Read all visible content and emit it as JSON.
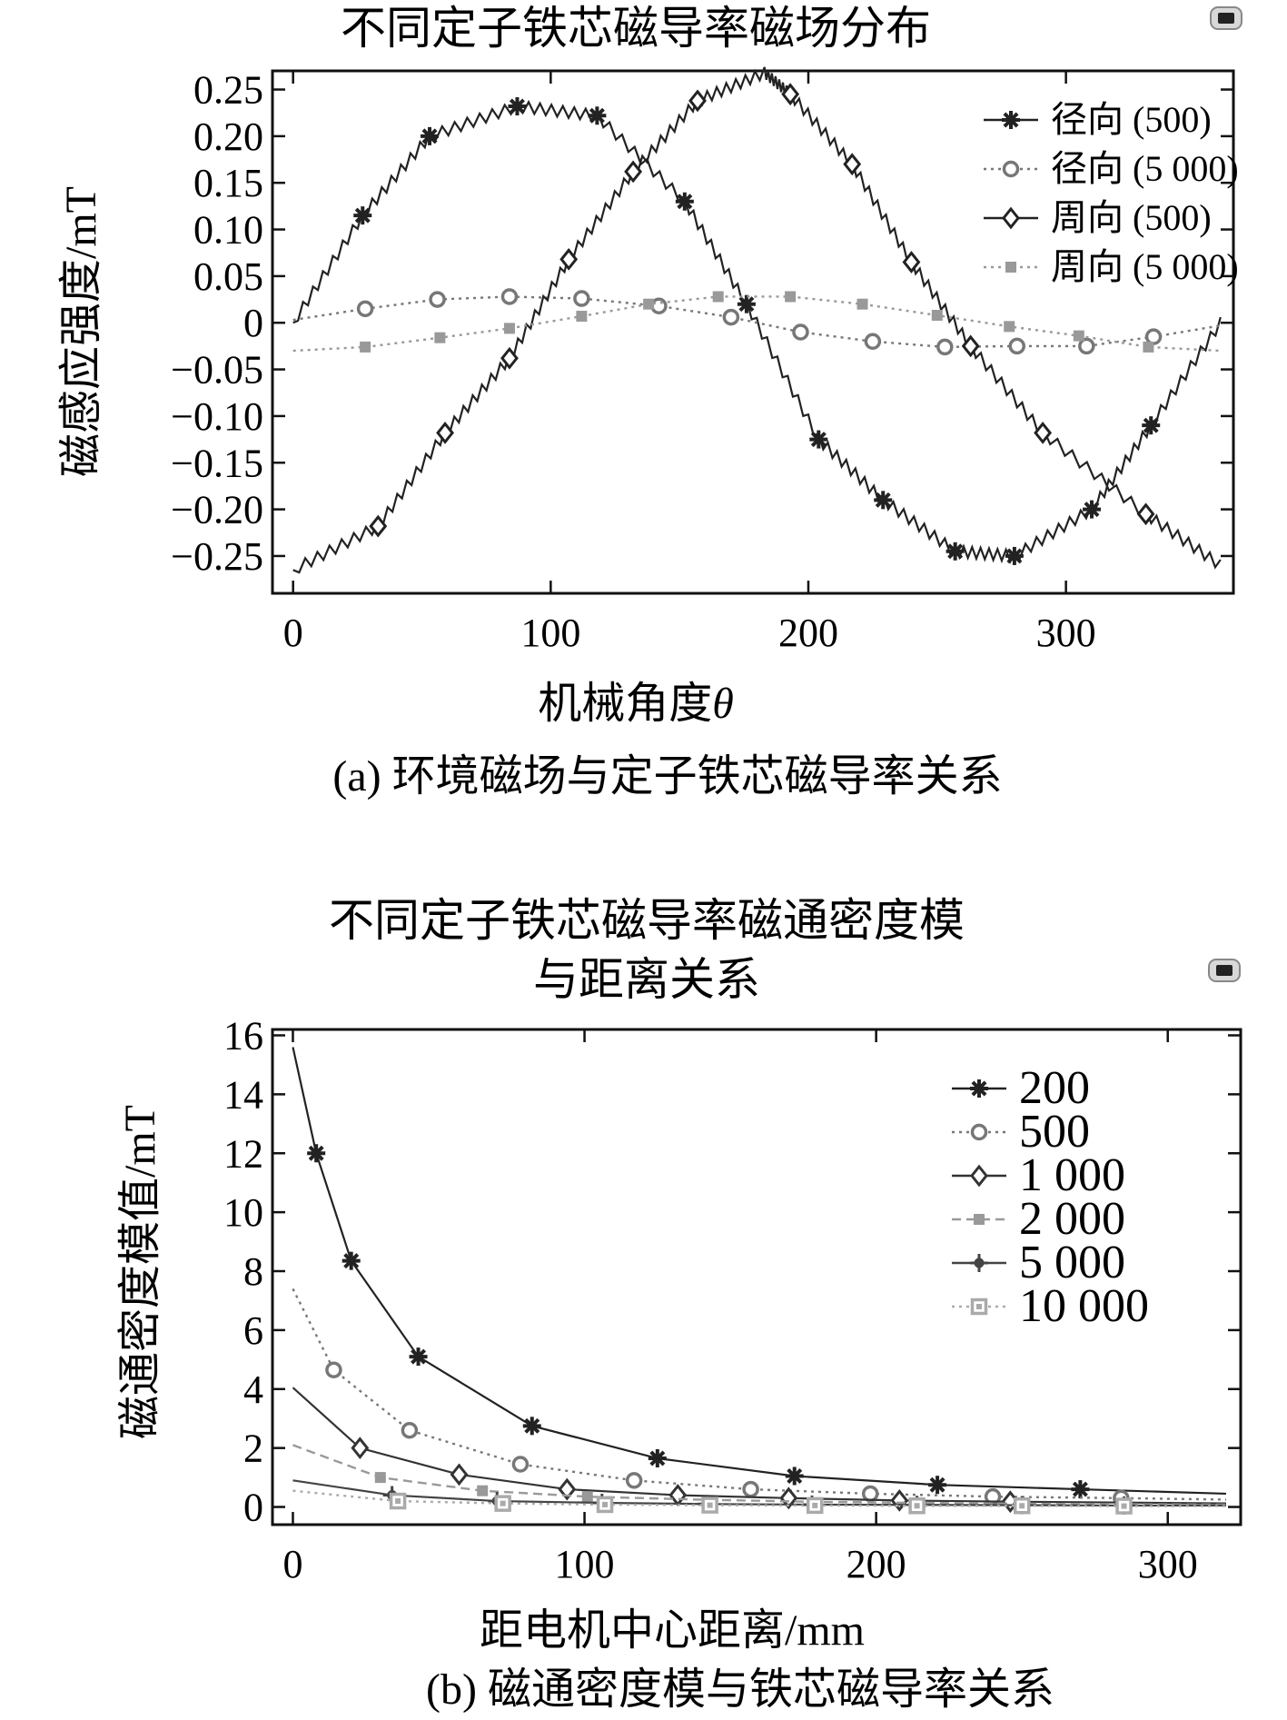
{
  "chart_data": [
    {
      "type": "line",
      "title": "不同定子铁芯磁导率磁场分布",
      "xlabel": "机械角度",
      "xlabel_symbol": "θ",
      "ylabel": "磁感应强度/mT",
      "caption": "(a) 环境磁场与定子铁芯磁导率关系",
      "xlim": [
        -8,
        365
      ],
      "ylim": [
        -0.29,
        0.27
      ],
      "xticks": [
        0,
        100,
        200,
        300
      ],
      "xtick_labels": [
        "0",
        "100",
        "200",
        "300"
      ],
      "yticks": [
        0.25,
        0.2,
        0.15,
        0.1,
        0.05,
        0,
        -0.05,
        -0.1,
        -0.15,
        -0.2,
        -0.25
      ],
      "ytick_labels": [
        "0.25",
        "0.20",
        "0.15",
        "0.10",
        "0.05",
        "0",
        "−0.05",
        "−0.10",
        "−0.15",
        "−0.20",
        "−0.25"
      ],
      "legend_position": "top-right",
      "series": [
        {
          "name": "径向 (500)",
          "marker": "asterisk",
          "line": "solid",
          "color": "#222222",
          "x": [
            0,
            27,
            53,
            87,
            118,
            152,
            176,
            204,
            229,
            257,
            280,
            310,
            333,
            360
          ],
          "y": [
            0.0,
            0.115,
            0.2,
            0.232,
            0.222,
            0.13,
            0.02,
            -0.125,
            -0.19,
            -0.245,
            -0.25,
            -0.2,
            -0.11,
            0.0
          ],
          "marker_x": [
            27,
            53,
            87,
            118,
            152,
            176,
            204,
            229,
            257,
            280,
            310,
            333
          ],
          "marker_y": [
            0.115,
            0.2,
            0.232,
            0.222,
            0.13,
            0.02,
            -0.125,
            -0.19,
            -0.245,
            -0.25,
            -0.2,
            -0.11
          ]
        },
        {
          "name": "径向 (5 000)",
          "marker": "circle",
          "line": "dotted",
          "color": "#777777",
          "x": [
            0,
            28,
            56,
            84,
            112,
            142,
            170,
            197,
            225,
            253,
            281,
            308,
            334,
            360
          ],
          "y": [
            0.003,
            0.015,
            0.025,
            0.028,
            0.026,
            0.018,
            0.006,
            -0.01,
            -0.02,
            -0.026,
            -0.025,
            -0.025,
            -0.015,
            -0.003
          ],
          "marker_x": [
            28,
            56,
            84,
            112,
            142,
            170,
            197,
            225,
            253,
            281,
            308,
            334
          ],
          "marker_y": [
            0.015,
            0.025,
            0.028,
            0.026,
            0.018,
            0.006,
            -0.01,
            -0.02,
            -0.026,
            -0.025,
            -0.025,
            -0.015
          ]
        },
        {
          "name": "周向 (500)",
          "marker": "diamond",
          "line": "solid",
          "color": "#222222",
          "x": [
            0,
            33,
            59,
            84,
            107,
            132,
            157,
            183,
            193,
            217,
            240,
            263,
            291,
            331,
            360
          ],
          "y": [
            -0.265,
            -0.218,
            -0.118,
            -0.038,
            0.068,
            0.162,
            0.238,
            0.268,
            0.245,
            0.17,
            0.065,
            -0.025,
            -0.118,
            -0.205,
            -0.26
          ],
          "marker_x": [
            33,
            59,
            84,
            107,
            132,
            157,
            193,
            217,
            240,
            263,
            291,
            331
          ],
          "marker_y": [
            -0.218,
            -0.118,
            -0.038,
            0.068,
            0.162,
            0.238,
            0.245,
            0.17,
            0.065,
            -0.025,
            -0.118,
            -0.205
          ]
        },
        {
          "name": "周向 (5 000)",
          "marker": "square",
          "line": "dotted",
          "color": "#999999",
          "x": [
            0,
            28,
            57,
            84,
            112,
            138,
            165,
            193,
            221,
            250,
            278,
            305,
            332,
            360
          ],
          "y": [
            -0.03,
            -0.026,
            -0.016,
            -0.006,
            0.007,
            0.02,
            0.028,
            0.028,
            0.02,
            0.008,
            -0.004,
            -0.014,
            -0.026,
            -0.03
          ],
          "marker_x": [
            28,
            57,
            84,
            112,
            138,
            165,
            193,
            221,
            250,
            278,
            305,
            332
          ],
          "marker_y": [
            -0.026,
            -0.016,
            -0.006,
            0.007,
            0.02,
            0.028,
            0.028,
            0.02,
            0.008,
            -0.004,
            -0.014,
            -0.026
          ]
        }
      ]
    },
    {
      "type": "line",
      "title": "不同定子铁芯磁导率磁通密度模",
      "title_line2": "与距离关系",
      "xlabel": "距电机中心距离/mm",
      "ylabel": "磁通密度模值/mT",
      "caption": "(b) 磁通密度模与铁芯磁导率关系",
      "xlim": [
        -7,
        325
      ],
      "ylim": [
        -0.6,
        16.2
      ],
      "xticks": [
        0,
        100,
        200,
        300
      ],
      "xtick_labels": [
        "0",
        "100",
        "200",
        "300"
      ],
      "yticks": [
        16,
        14,
        12,
        10,
        8,
        6,
        4,
        2,
        0
      ],
      "ytick_labels": [
        "16",
        "14",
        "12",
        "10",
        "8",
        "6",
        "4",
        "2",
        "0"
      ],
      "legend_position": "top-right",
      "series": [
        {
          "name": "200",
          "marker": "asterisk",
          "line": "solid",
          "color": "#222222",
          "x": [
            0,
            8,
            20,
            43,
            82,
            125,
            172,
            221,
            270,
            320
          ],
          "y": [
            15.6,
            12.0,
            8.35,
            5.1,
            2.75,
            1.65,
            1.05,
            0.75,
            0.6,
            0.45
          ],
          "marker_x": [
            8,
            20,
            43,
            82,
            125,
            172,
            221,
            270
          ],
          "marker_y": [
            12.0,
            8.35,
            5.1,
            2.75,
            1.65,
            1.05,
            0.75,
            0.6
          ]
        },
        {
          "name": "500",
          "marker": "circle",
          "line": "dotted",
          "color": "#777777",
          "x": [
            0,
            14,
            40,
            78,
            117,
            157,
            198,
            240,
            284,
            320
          ],
          "y": [
            7.4,
            4.65,
            2.6,
            1.45,
            0.9,
            0.6,
            0.45,
            0.35,
            0.3,
            0.25
          ],
          "marker_x": [
            14,
            40,
            78,
            117,
            157,
            198,
            240,
            284
          ],
          "marker_y": [
            4.65,
            2.6,
            1.45,
            0.9,
            0.6,
            0.45,
            0.35,
            0.3
          ]
        },
        {
          "name": "1 000",
          "marker": "diamond",
          "line": "solid",
          "color": "#333333",
          "x": [
            0,
            23,
            57,
            94,
            132,
            170,
            208,
            246,
            285,
            320
          ],
          "y": [
            4.05,
            2.0,
            1.1,
            0.6,
            0.4,
            0.3,
            0.22,
            0.18,
            0.15,
            0.12
          ],
          "marker_x": [
            23,
            57,
            94,
            132,
            170,
            208,
            246
          ],
          "marker_y": [
            2.0,
            1.1,
            0.6,
            0.4,
            0.3,
            0.22,
            0.18
          ]
        },
        {
          "name": "2 000",
          "marker": "square",
          "line": "dashed",
          "color": "#999999",
          "x": [
            0,
            30,
            65,
            101,
            139,
            176,
            213,
            250,
            288,
            320
          ],
          "y": [
            2.1,
            1.0,
            0.55,
            0.35,
            0.25,
            0.18,
            0.14,
            0.11,
            0.09,
            0.08
          ],
          "marker_x": [
            30,
            65,
            101
          ],
          "marker_y": [
            1.0,
            0.55,
            0.35
          ]
        },
        {
          "name": "5 000",
          "marker": "plus-dot",
          "line": "solid",
          "color": "#444444",
          "x": [
            0,
            34,
            70,
            106,
            142,
            178,
            214,
            250,
            285,
            320
          ],
          "y": [
            0.9,
            0.4,
            0.2,
            0.14,
            0.1,
            0.08,
            0.07,
            0.06,
            0.05,
            0.05
          ],
          "marker_x": [
            34,
            70,
            106,
            142,
            178,
            214,
            250,
            285
          ],
          "marker_y": [
            0.4,
            0.2,
            0.14,
            0.1,
            0.08,
            0.07,
            0.06,
            0.05
          ]
        },
        {
          "name": "10 000",
          "marker": "box-square",
          "line": "dotted",
          "color": "#aaaaaa",
          "x": [
            0,
            36,
            72,
            107,
            143,
            179,
            214,
            250,
            285,
            320
          ],
          "y": [
            0.55,
            0.2,
            0.12,
            0.08,
            0.06,
            0.05,
            0.04,
            0.04,
            0.03,
            0.03
          ],
          "marker_x": [
            36,
            72,
            107,
            143,
            179,
            214,
            250,
            285
          ],
          "marker_y": [
            0.2,
            0.12,
            0.08,
            0.06,
            0.05,
            0.04,
            0.04,
            0.03
          ]
        }
      ]
    }
  ]
}
